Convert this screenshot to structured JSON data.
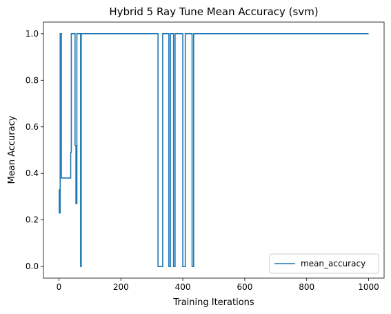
{
  "chart_data": {
    "type": "line",
    "title": "Hybrid 5 Ray Tune Mean Accuracy (svm)",
    "xlabel": "Training Iterations",
    "ylabel": "Mean Accuracy",
    "xlim": [
      -50,
      1050
    ],
    "ylim": [
      -0.05,
      1.05
    ],
    "xticks": [
      0,
      200,
      400,
      600,
      800,
      1000
    ],
    "yticks": [
      0.0,
      0.2,
      0.4,
      0.6,
      0.8,
      1.0
    ],
    "xtick_labels": [
      "0",
      "200",
      "400",
      "600",
      "800",
      "1000"
    ],
    "ytick_labels": [
      "0.0",
      "0.2",
      "0.4",
      "0.6",
      "0.8",
      "1.0"
    ],
    "legend_position": "lower-right",
    "grid": false,
    "series": [
      {
        "name": "mean_accuracy",
        "color": "#1f77b4",
        "step": true,
        "x": [
          0,
          1,
          4,
          8,
          38,
          40,
          52,
          55,
          58,
          70,
          72,
          320,
          335,
          355,
          360,
          370,
          375,
          400,
          408,
          430,
          435,
          1000
        ],
        "y": [
          0.33,
          0.23,
          1.0,
          0.38,
          0.49,
          1.0,
          0.52,
          0.27,
          1.0,
          0.0,
          1.0,
          0.0,
          1.0,
          0.0,
          1.0,
          0.0,
          1.0,
          0.0,
          1.0,
          0.0,
          1.0,
          1.0
        ]
      }
    ]
  }
}
